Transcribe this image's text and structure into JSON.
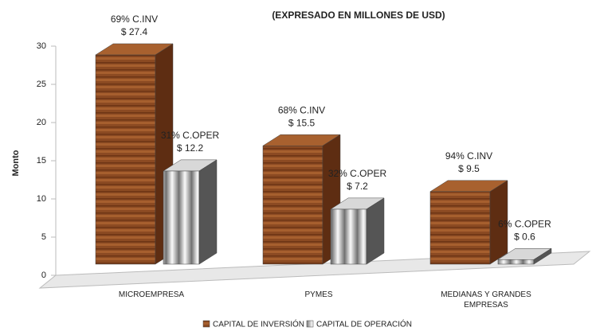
{
  "chart_data": {
    "type": "bar3d",
    "subtitle": "(EXPRESADO EN MILLONES DE USD)",
    "y_label": "Monto",
    "categories": [
      "MICROEMPRESA",
      "PYMES",
      "MEDIANAS Y GRANDES EMPRESAS"
    ],
    "series": [
      {
        "name": "CAPITAL DE INVERSIÓN",
        "color": "#8b4a22",
        "values": [
          27.4,
          15.5,
          9.5
        ],
        "value_labels": [
          "$ 27.4",
          "$ 15.5",
          "$ 9.5"
        ],
        "share_labels": [
          "69% C.INV",
          "68% C.INV",
          "94% C.INV"
        ]
      },
      {
        "name": "CAPITAL DE OPERACIÓN",
        "color": "#b8b8b8",
        "values": [
          12.2,
          7.2,
          0.6
        ],
        "value_labels": [
          "$ 12.2",
          "$ 7.2",
          "$ 0.6"
        ],
        "share_labels": [
          "31% C.OPER",
          "32% C.OPER",
          "6% C.OPER"
        ]
      }
    ],
    "ylim": [
      0,
      30
    ],
    "yticks": [
      0,
      5,
      10,
      15,
      20,
      25,
      30
    ],
    "legend": "bottom"
  }
}
